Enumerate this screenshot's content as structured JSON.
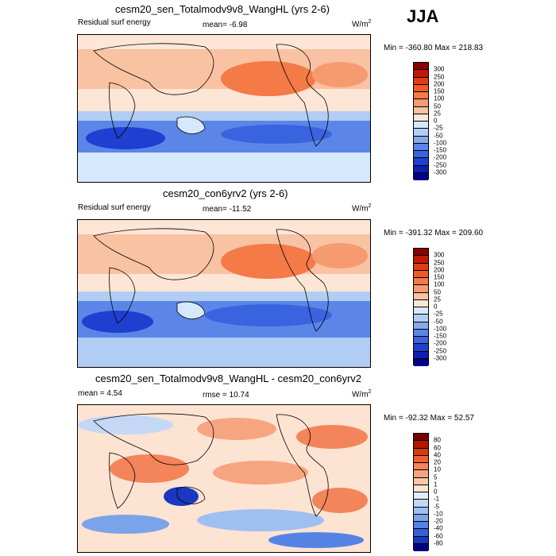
{
  "season": "JJA",
  "panels": [
    {
      "title": "cesm20_sen_Totalmodv9v8_WangHL (yrs 2-6)",
      "left_label": "Residual surf energy",
      "center_label": "mean=  -6.98",
      "units": "W/m",
      "units_sup": "2",
      "minmax": "Min = -360.80 Max = 218.83",
      "palette": "abs",
      "colorbar_labels": [
        "300",
        "250",
        "200",
        "150",
        "100",
        "50",
        "25",
        "0",
        "-25",
        "-50",
        "-100",
        "-150",
        "-200",
        "-250",
        "-300"
      ]
    },
    {
      "title": "cesm20_con6yrv2 (yrs 2-6)",
      "left_label": "Residual surf energy",
      "center_label": "mean= -11.52",
      "units": "W/m",
      "units_sup": "2",
      "minmax": "Min = -391.32 Max = 209.60",
      "palette": "abs",
      "colorbar_labels": [
        "300",
        "250",
        "200",
        "150",
        "100",
        "50",
        "25",
        "0",
        "-25",
        "-50",
        "-100",
        "-150",
        "-200",
        "-250",
        "-300"
      ]
    },
    {
      "title": "cesm20_sen_Totalmodv9v8_WangHL - cesm20_con6yrv2",
      "left_label": "mean =  4.54",
      "center_label": "rmse =  10.74",
      "units": "W/m",
      "units_sup": "2",
      "minmax": "Min = -92.32 Max =  52.57",
      "palette": "diff",
      "colorbar_labels": [
        "80",
        "60",
        "40",
        "20",
        "10",
        "5",
        "1",
        "0",
        "-1",
        "-5",
        "-10",
        "-20",
        "-40",
        "-60",
        "-80"
      ]
    }
  ],
  "colors": {
    "abs": [
      "#8b0000",
      "#c01a05",
      "#e03e10",
      "#f05a28",
      "#f47a48",
      "#f69a70",
      "#f9c2a3",
      "#fde6d6",
      "#d6e8fb",
      "#b2cdf3",
      "#84aaee",
      "#5b86e8",
      "#3a63e0",
      "#1e3fd0",
      "#0f1fb0",
      "#00008b"
    ],
    "diff": [
      "#7a0000",
      "#b51500",
      "#d93a10",
      "#ef6030",
      "#f4845a",
      "#f7a580",
      "#fac7ab",
      "#fde3d2",
      "#e0edfc",
      "#c4d8f5",
      "#9fbff0",
      "#7aa3ea",
      "#5583e4",
      "#3460d8",
      "#1a37c0",
      "#000080"
    ]
  },
  "chart_data": [
    {
      "type": "heatmap",
      "title": "cesm20_sen_Totalmodv9v8_WangHL (yrs 2-6)",
      "variable": "Residual surf energy",
      "units": "W/m2",
      "season": "JJA",
      "mean": -6.98,
      "min": -360.8,
      "max": 218.83,
      "levels": [
        -300,
        -250,
        -200,
        -150,
        -100,
        -50,
        -25,
        0,
        25,
        50,
        100,
        150,
        200,
        250,
        300
      ]
    },
    {
      "type": "heatmap",
      "title": "cesm20_con6yrv2 (yrs 2-6)",
      "variable": "Residual surf energy",
      "units": "W/m2",
      "season": "JJA",
      "mean": -11.52,
      "min": -391.32,
      "max": 209.6,
      "levels": [
        -300,
        -250,
        -200,
        -150,
        -100,
        -50,
        -25,
        0,
        25,
        50,
        100,
        150,
        200,
        250,
        300
      ]
    },
    {
      "type": "heatmap",
      "title": "cesm20_sen_Totalmodv9v8_WangHL - cesm20_con6yrv2",
      "units": "W/m2",
      "season": "JJA",
      "mean": 4.54,
      "rmse": 10.74,
      "min": -92.32,
      "max": 52.57,
      "levels": [
        -80,
        -60,
        -40,
        -20,
        -10,
        -5,
        -1,
        0,
        1,
        5,
        10,
        20,
        40,
        60,
        80
      ]
    }
  ]
}
